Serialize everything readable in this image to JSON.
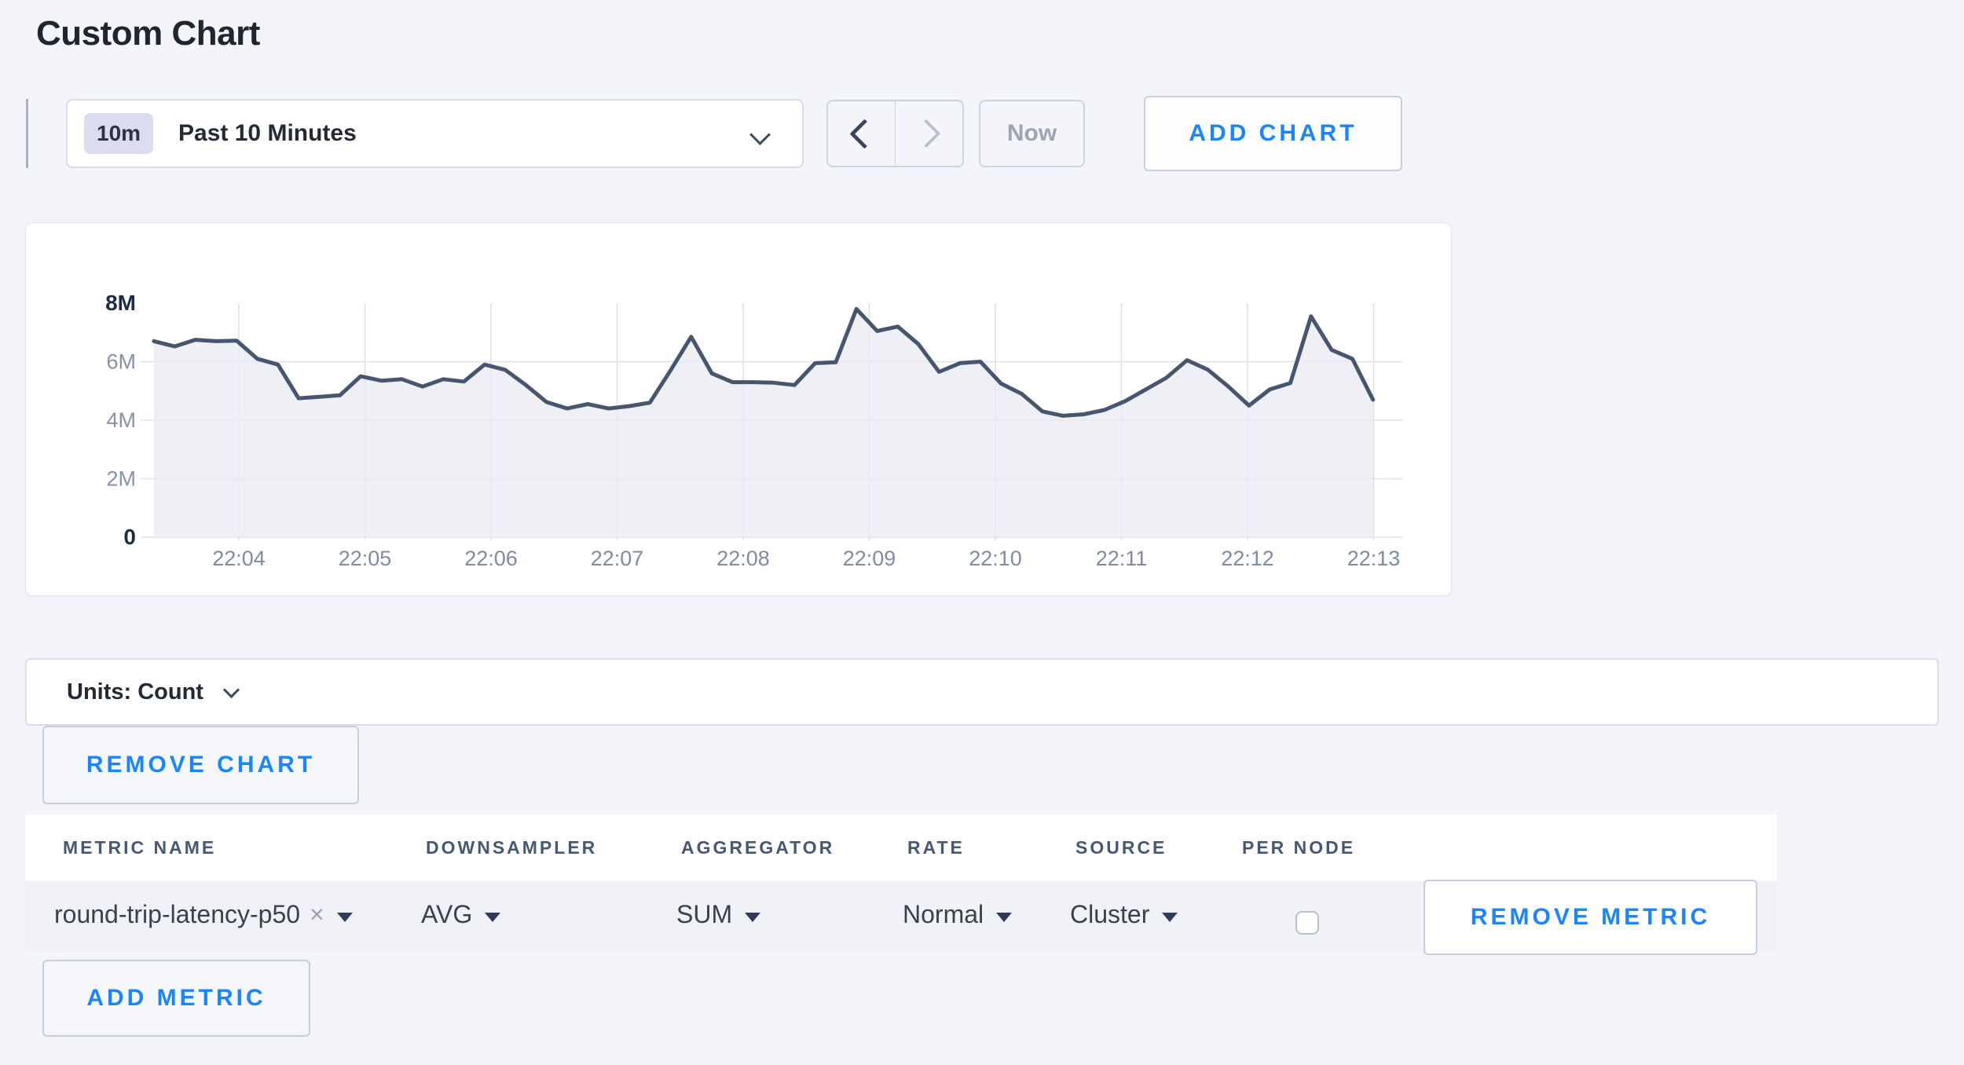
{
  "page_title": "Custom Chart",
  "toolbar": {
    "range_badge": "10m",
    "range_label": "Past 10 Minutes",
    "prev_icon": "chevron-left",
    "next_icon": "chevron-right",
    "now_label": "Now",
    "add_chart_label": "ADD CHART"
  },
  "chart_data": {
    "type": "area",
    "title": "",
    "xlabel": "",
    "ylabel": "",
    "unit": "Count",
    "ylim": [
      0,
      8000000
    ],
    "grid": true,
    "y_ticks": [
      "0",
      "2M",
      "4M",
      "6M",
      "8M"
    ],
    "x_ticks": [
      "22:04",
      "22:05",
      "22:06",
      "22:07",
      "22:08",
      "22:09",
      "22:10",
      "22:11",
      "22:12",
      "22:13"
    ],
    "series_name": "round-trip-latency-p50 (AVG, SUM, Normal, Cluster)",
    "start_time": "22:03:20",
    "interval_seconds": 10,
    "values_millions": [
      6.7,
      6.52,
      6.75,
      6.7,
      6.72,
      6.1,
      5.9,
      4.75,
      4.8,
      4.85,
      5.5,
      5.35,
      5.4,
      5.15,
      5.4,
      5.32,
      5.9,
      5.72,
      5.2,
      4.62,
      4.4,
      4.55,
      4.4,
      4.48,
      4.6,
      5.7,
      6.85,
      5.6,
      5.3,
      5.3,
      5.28,
      5.2,
      5.95,
      5.98,
      7.8,
      7.05,
      7.2,
      6.6,
      5.65,
      5.95,
      6.0,
      5.25,
      4.9,
      4.3,
      4.15,
      4.2,
      4.35,
      4.65,
      5.05,
      5.45,
      6.05,
      5.73,
      5.15,
      4.5,
      5.05,
      5.27,
      7.55,
      6.4,
      6.1,
      4.7
    ]
  },
  "units_bar": {
    "label": "Units: Count"
  },
  "chart_section": {
    "remove_chart_label": "REMOVE CHART"
  },
  "metrics_table": {
    "columns": [
      "METRIC NAME",
      "DOWNSAMPLER",
      "AGGREGATOR",
      "RATE",
      "SOURCE",
      "PER NODE"
    ],
    "rows": [
      {
        "metric_name": "round-trip-latency-p50",
        "clear_glyph": "×",
        "downsampler": "AVG",
        "aggregator": "SUM",
        "rate": "Normal",
        "source": "Cluster",
        "per_node_checked": false,
        "remove_label": "REMOVE METRIC"
      }
    ],
    "add_metric_label": "ADD METRIC"
  },
  "colors": {
    "accent_blue": "#1a85ff",
    "line": "#47566f",
    "area_fill": "#e9ebf2",
    "gridline": "#dde1ec",
    "axis_label": "#7f8ba1",
    "axis_label_strong": "#1f2b4a",
    "page_background": "#f4f5fa"
  }
}
